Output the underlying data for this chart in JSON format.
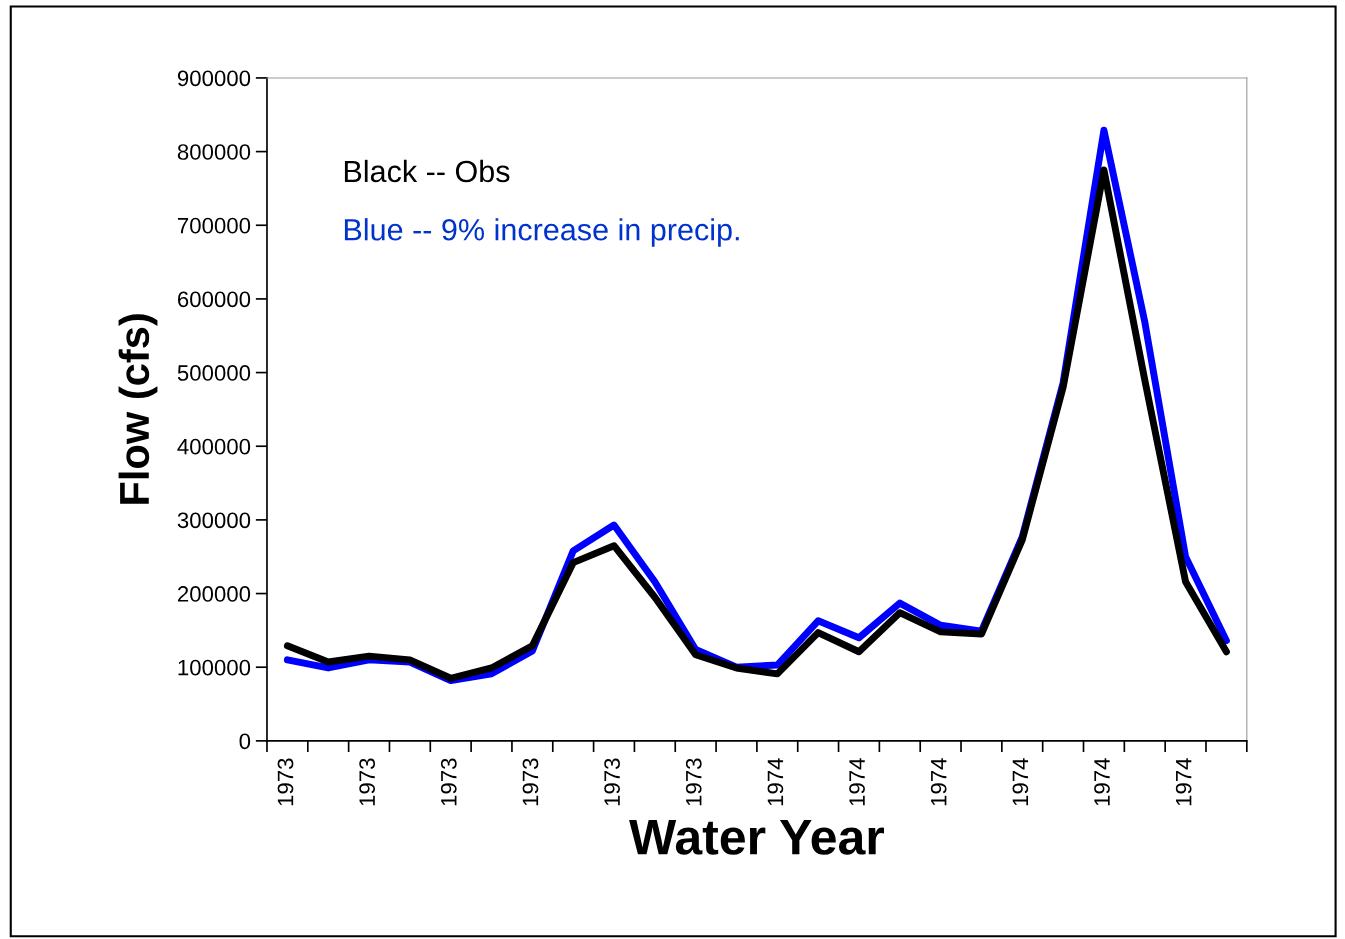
{
  "chart_data": {
    "type": "line",
    "xlabel": "Water Year",
    "ylabel": "Flow (cfs)",
    "categories": [
      "1973",
      null,
      "1973",
      null,
      "1973",
      null,
      "1973",
      null,
      "1973",
      null,
      "1973",
      null,
      "1974",
      null,
      "1974",
      null,
      "1974",
      null,
      "1974",
      null,
      "1974",
      null,
      "1974",
      null
    ],
    "series": [
      {
        "color": "#0000ff",
        "values": [
          110000,
          99000,
          110000,
          107000,
          82000,
          91000,
          122000,
          258000,
          293000,
          216000,
          124000,
          100000,
          103000,
          163000,
          140000,
          187000,
          157000,
          149000,
          277000,
          486000,
          829000,
          569000,
          250000,
          136000
        ]
      },
      {
        "color": "#000000",
        "values": [
          129000,
          107000,
          115000,
          110000,
          85000,
          99000,
          129000,
          242000,
          265000,
          195000,
          117000,
          99000,
          91000,
          147000,
          121000,
          174000,
          148000,
          145000,
          273000,
          480000,
          775000,
          490000,
          216000,
          121000
        ]
      }
    ],
    "annotations": [
      "Black -- Obs",
      "Blue -- 9% increase in precip."
    ],
    "ylim": [
      0,
      900000
    ],
    "yticks": [
      0,
      100000,
      200000,
      300000,
      400000,
      500000,
      600000,
      700000,
      800000,
      900000
    ],
    "grid": false,
    "legend": false,
    "marker": "none",
    "line_style": "solid"
  }
}
